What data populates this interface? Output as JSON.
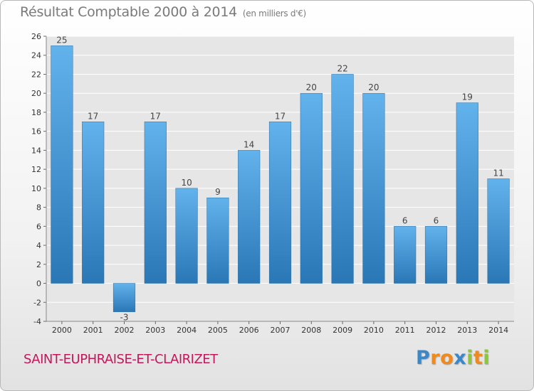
{
  "chart_data": {
    "type": "bar",
    "title": "Résultat Comptable 2000 à 2014",
    "subtitle": "(en milliers d'€)",
    "categories": [
      "2000",
      "2001",
      "2002",
      "2003",
      "2004",
      "2005",
      "2006",
      "2007",
      "2008",
      "2009",
      "2010",
      "2011",
      "2012",
      "2013",
      "2014"
    ],
    "values": [
      25,
      17,
      -3,
      17,
      10,
      9,
      14,
      17,
      20,
      22,
      20,
      6,
      6,
      19,
      11
    ],
    "ylim": [
      -4,
      26
    ],
    "yticks": [
      -4,
      -2,
      0,
      2,
      4,
      6,
      8,
      10,
      12,
      14,
      16,
      18,
      20,
      22,
      24,
      26
    ],
    "xlabel": "",
    "ylabel": "",
    "grid": true,
    "bar_color_top": "#62b2ec",
    "bar_color_bottom": "#2a77b6",
    "grid_color": "#ffffff",
    "plot_bg": "#e6e6e6"
  },
  "footer": {
    "commune": "SAINT-EUPHRAISE-ET-CLAIRIZET",
    "commune_color": "#c2185b"
  },
  "brand": {
    "logo_text": "Proxiti",
    "letters": [
      {
        "ch": "P",
        "color": "#3a87c9"
      },
      {
        "ch": "r",
        "color": "#f08a1c"
      },
      {
        "ch": "o",
        "color": "#f08a1c"
      },
      {
        "ch": "x",
        "color": "#3a87c9"
      },
      {
        "ch": "i",
        "color": "#8cc63f"
      },
      {
        "ch": "t",
        "color": "#f08a1c"
      },
      {
        "ch": "i",
        "color": "#8cc63f"
      }
    ]
  }
}
